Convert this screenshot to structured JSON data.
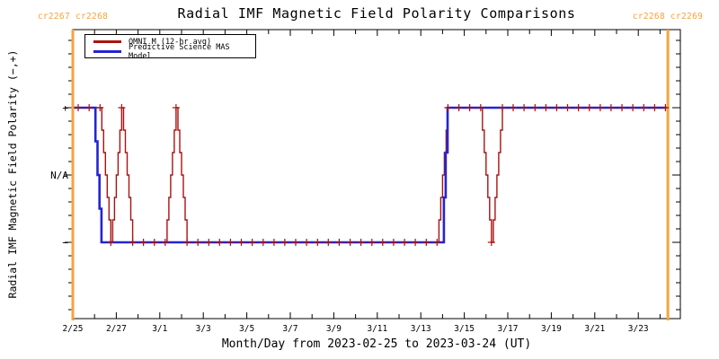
{
  "title": "Radial IMF Magnetic Field Polarity Comparisons",
  "cr_labels": {
    "left": "cr2267 cr2268",
    "right": "cr2268 cr2269"
  },
  "colors": {
    "omni_red": "#aa1212",
    "mas_blue": "#2424d2",
    "cr_orange": "#f9a23c",
    "axis_black": "#000000",
    "background": "#ffffff"
  },
  "legend": {
    "items": [
      {
        "label": "OMNI_M (12-hr avg)",
        "color_key": "omni_red"
      },
      {
        "label": "Predictive Science MAS Model",
        "color_key": "mas_blue"
      }
    ]
  },
  "chart_data": {
    "type": "line",
    "title": "Radial IMF Magnetic Field Polarity Comparisons",
    "xlabel": "Month/Day from 2023-02-25 to 2023-03-24 (UT)",
    "ylabel": "Radial IMF Magnetic Field Polarity (−,+)",
    "x_unit": "days since 2023-02-25 00:00 UT",
    "x_range_days": [
      0,
      27.93
    ],
    "y_range": [
      -2.2,
      2.2
    ],
    "y_ticks": [
      {
        "value": 1,
        "label": "+"
      },
      {
        "value": 0,
        "label": "N/A"
      },
      {
        "value": -1,
        "label": "−"
      }
    ],
    "y_minor_tick_step": 0.2,
    "x_ticks": [
      {
        "day": 0,
        "label": "2/25"
      },
      {
        "day": 2,
        "label": "2/27"
      },
      {
        "day": 4,
        "label": "3/1"
      },
      {
        "day": 6,
        "label": "3/3"
      },
      {
        "day": 8,
        "label": "3/5"
      },
      {
        "day": 10,
        "label": "3/7"
      },
      {
        "day": 12,
        "label": "3/9"
      },
      {
        "day": 14,
        "label": "3/11"
      },
      {
        "day": 16,
        "label": "3/13"
      },
      {
        "day": 18,
        "label": "3/15"
      },
      {
        "day": 20,
        "label": "3/17"
      },
      {
        "day": 22,
        "label": "3/19"
      },
      {
        "day": 24,
        "label": "3/21"
      },
      {
        "day": 26,
        "label": "3/23"
      }
    ],
    "x_minor_tick_step_days": 1,
    "cr_boundaries_days": [
      0,
      27.36
    ],
    "series": [
      {
        "name": "OMNI_M (12-hr avg)",
        "color_key": "omni_red",
        "line_width": 1.4,
        "marker": "plus",
        "marker_start_day": 0.25,
        "marker_interval_days": 0.5,
        "points": [
          [
            0,
            1
          ],
          [
            1.25,
            1
          ],
          [
            1.75,
            -1
          ],
          [
            2.25,
            1
          ],
          [
            2.75,
            -1
          ],
          [
            4.25,
            -1
          ],
          [
            4.75,
            1
          ],
          [
            5.25,
            -1
          ],
          [
            16.75,
            -1
          ],
          [
            17.25,
            1
          ],
          [
            18.75,
            1
          ],
          [
            19.25,
            -1
          ],
          [
            19.75,
            1
          ],
          [
            27.36,
            1
          ]
        ]
      },
      {
        "name": "Predictive Science MAS Model",
        "color_key": "mas_blue",
        "line_width": 2.6,
        "marker": "none",
        "points": [
          [
            0,
            1
          ],
          [
            0.95,
            1
          ],
          [
            1.32,
            -1
          ],
          [
            16.98,
            -1
          ],
          [
            17.23,
            1
          ],
          [
            27.36,
            1
          ]
        ]
      }
    ]
  }
}
